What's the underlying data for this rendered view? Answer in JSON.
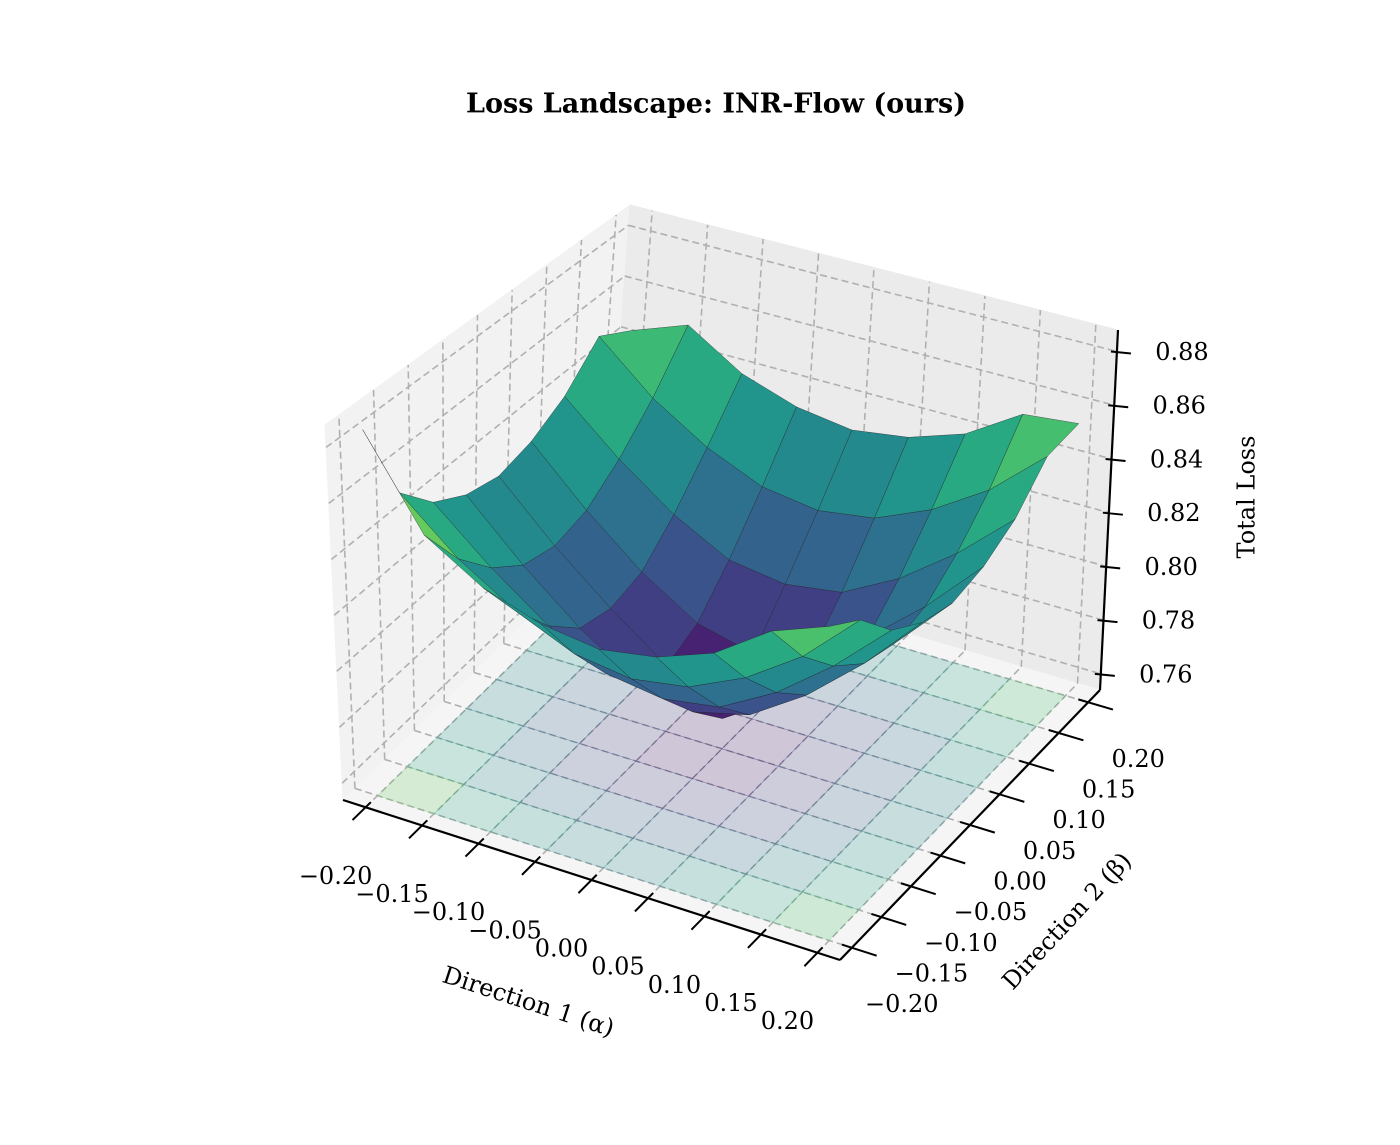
{
  "chart_data": {
    "type": "surface",
    "title": "Loss Landscape: INR-Flow (ours)",
    "xlabel": "Direction 1 (α)",
    "ylabel": "Direction 2 (β)",
    "zlabel": "Total Loss",
    "colormap": "viridis",
    "grid": true,
    "floor_contour": true,
    "x": [
      -0.2,
      -0.15,
      -0.1,
      -0.05,
      0,
      0.05,
      0.1,
      0.15,
      0.2
    ],
    "y": [
      -0.2,
      -0.15,
      -0.1,
      -0.05,
      0,
      0.05,
      0.1,
      0.15,
      0.2
    ],
    "z": [
      [
        0.885,
        0.853,
        0.84,
        0.833,
        0.83,
        0.833,
        0.84,
        0.853,
        0.845
      ],
      [
        0.853,
        0.835,
        0.822,
        0.813,
        0.81,
        0.813,
        0.822,
        0.835,
        0.853
      ],
      [
        0.84,
        0.822,
        0.807,
        0.796,
        0.793,
        0.796,
        0.807,
        0.822,
        0.84
      ],
      [
        0.833,
        0.813,
        0.796,
        0.783,
        0.778,
        0.783,
        0.796,
        0.813,
        0.833
      ],
      [
        0.83,
        0.81,
        0.793,
        0.778,
        0.765,
        0.778,
        0.793,
        0.81,
        0.83
      ],
      [
        0.833,
        0.813,
        0.796,
        0.783,
        0.778,
        0.783,
        0.796,
        0.813,
        0.833
      ],
      [
        0.84,
        0.822,
        0.807,
        0.796,
        0.793,
        0.796,
        0.807,
        0.822,
        0.84
      ],
      [
        0.853,
        0.835,
        0.822,
        0.813,
        0.81,
        0.813,
        0.822,
        0.835,
        0.853
      ],
      [
        0.86,
        0.853,
        0.84,
        0.833,
        0.83,
        0.833,
        0.84,
        0.853,
        0.855
      ]
    ],
    "xlim": [
      -0.22,
      0.22
    ],
    "ylim": [
      -0.22,
      0.22
    ],
    "zlim": [
      0.754,
      0.888
    ],
    "xticks": [
      {
        "value": -0.2,
        "label": "−0.20"
      },
      {
        "value": -0.15,
        "label": "−0.15"
      },
      {
        "value": -0.1,
        "label": "−0.10"
      },
      {
        "value": -0.05,
        "label": "−0.05"
      },
      {
        "value": 0,
        "label": "0.00"
      },
      0.05,
      {
        "value": 0.1,
        "label": "0.10"
      },
      0.15,
      {
        "value": 0.2,
        "label": "0.20"
      }
    ],
    "yticks": [
      {
        "value": -0.2,
        "label": "−0.20"
      },
      {
        "value": -0.15,
        "label": "−0.15"
      },
      {
        "value": -0.1,
        "label": "−0.10"
      },
      {
        "value": -0.05,
        "label": "−0.05"
      },
      {
        "value": 0,
        "label": "0.00"
      },
      0.05,
      {
        "value": 0.1,
        "label": "0.10"
      },
      0.15,
      {
        "value": 0.2,
        "label": "0.20"
      }
    ],
    "zticks": [
      0.76,
      0.78,
      {
        "value": 0.8,
        "label": "0.80"
      },
      0.82,
      0.84,
      0.86,
      0.88
    ]
  }
}
